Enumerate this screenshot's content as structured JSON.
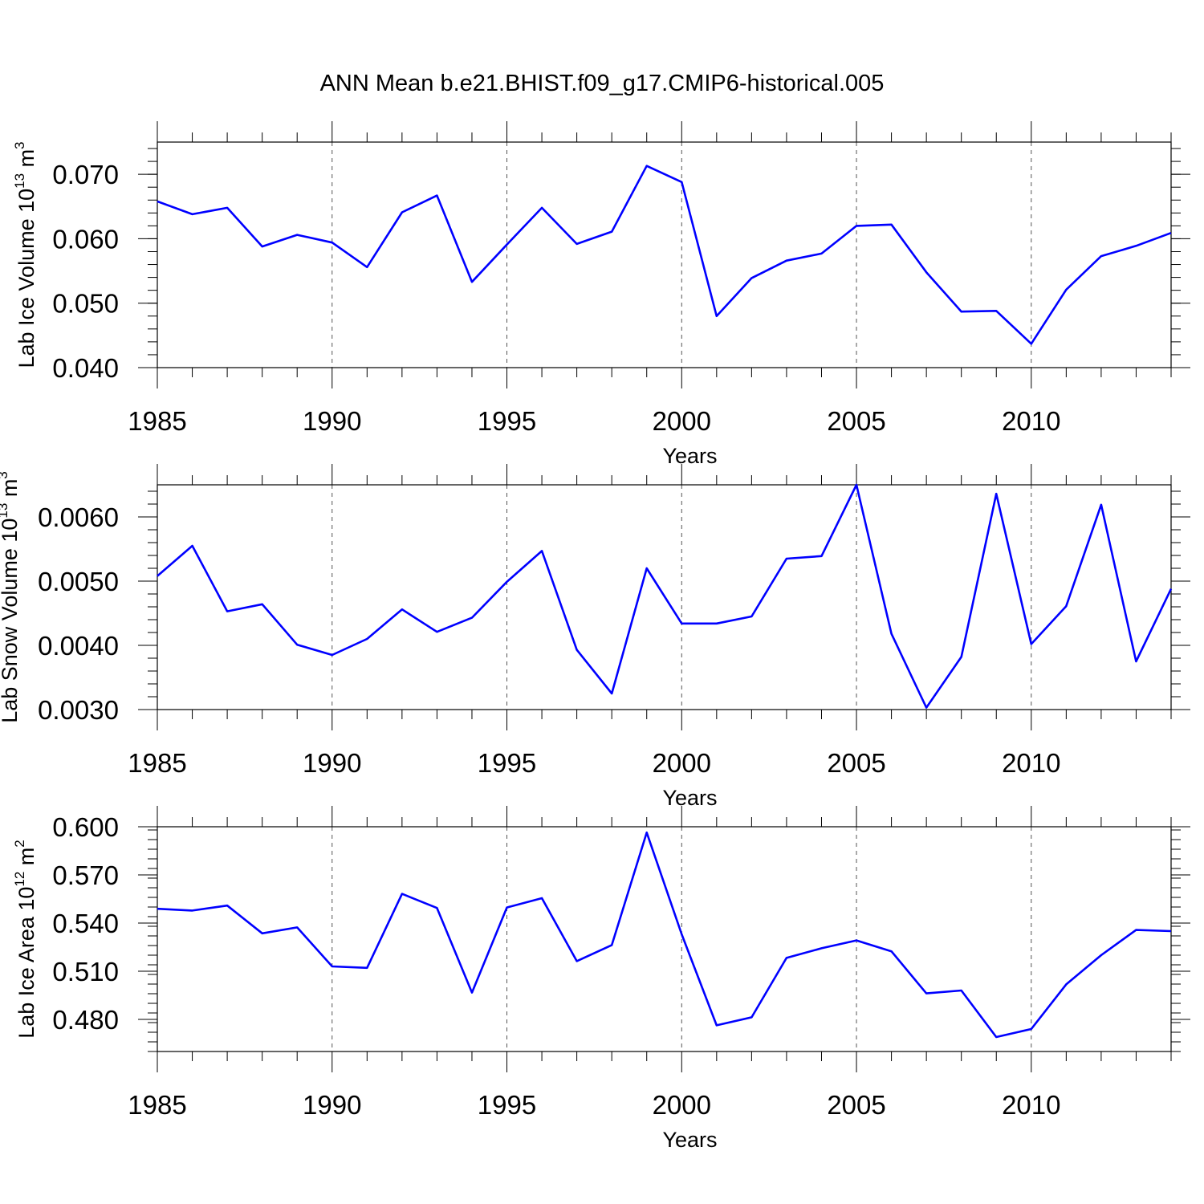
{
  "title": "ANN Mean b.e21.BHIST.f09_g17.CMIP6-historical.005",
  "colors": {
    "line": "#0000ff",
    "frame": "#000000",
    "grid": "#555555",
    "background": "#ffffff"
  },
  "chart_data": [
    {
      "type": "line",
      "title": "",
      "xlabel": "Years",
      "ylabel": {
        "prefix": "Lab Ice Volume 10",
        "exp": "13",
        "unit": " m",
        "unit_exp": "3"
      },
      "x_ticks": [
        "1985",
        "1990",
        "1995",
        "2000",
        "2005",
        "2010"
      ],
      "y_ticks": [
        "0.040",
        "0.050",
        "0.060",
        "0.070"
      ],
      "xlim": [
        1985,
        2014
      ],
      "ylim": [
        0.04,
        0.075
      ],
      "grid": "vertical dashed at major x ticks",
      "series": [
        {
          "x": [
            1985,
            1986,
            1987,
            1988,
            1989,
            1990,
            1991,
            1992,
            1993,
            1994,
            1995,
            1996,
            1997,
            1998,
            1999,
            2000,
            2001,
            2002,
            2003,
            2004,
            2005,
            2006,
            2007,
            2008,
            2009,
            2010,
            2011,
            2012,
            2013,
            2014
          ],
          "values": [
            0.0658,
            0.0638,
            0.0648,
            0.0588,
            0.0606,
            0.0594,
            0.0556,
            0.0641,
            0.0667,
            0.0533,
            0.0591,
            0.0648,
            0.0592,
            0.0611,
            0.0713,
            0.0688,
            0.048,
            0.0539,
            0.0566,
            0.0577,
            0.062,
            0.0622,
            0.0548,
            0.0487,
            0.0488,
            0.0437,
            0.0521,
            0.0573,
            0.0589,
            0.0609
          ]
        }
      ]
    },
    {
      "type": "line",
      "title": "",
      "xlabel": "Years",
      "ylabel": {
        "prefix": "Lab Snow Volume 10",
        "exp": "13",
        "unit": " m",
        "unit_exp": "3"
      },
      "x_ticks": [
        "1985",
        "1990",
        "1995",
        "2000",
        "2005",
        "2010"
      ],
      "y_ticks": [
        "0.0030",
        "0.0040",
        "0.0050",
        "0.0060"
      ],
      "xlim": [
        1985,
        2014
      ],
      "ylim": [
        0.003,
        0.0065
      ],
      "grid": "vertical dashed at major x ticks",
      "series": [
        {
          "x": [
            1985,
            1986,
            1987,
            1988,
            1989,
            1990,
            1991,
            1992,
            1993,
            1994,
            1995,
            1996,
            1997,
            1998,
            1999,
            2000,
            2001,
            2002,
            2003,
            2004,
            2005,
            2006,
            2007,
            2008,
            2009,
            2010,
            2011,
            2012,
            2013,
            2014
          ],
          "values": [
            0.00508,
            0.00555,
            0.00453,
            0.00464,
            0.00401,
            0.00385,
            0.0041,
            0.00456,
            0.00421,
            0.00443,
            0.00499,
            0.00547,
            0.00393,
            0.00325,
            0.0052,
            0.00434,
            0.00434,
            0.00445,
            0.00535,
            0.00539,
            0.0065,
            0.00418,
            0.00303,
            0.00382,
            0.00636,
            0.00402,
            0.00461,
            0.00619,
            0.00375,
            0.00488
          ]
        }
      ]
    },
    {
      "type": "line",
      "title": "",
      "xlabel": "Years",
      "ylabel": {
        "prefix": "Lab Ice Area 10",
        "exp": "12",
        "unit": " m",
        "unit_exp": "2"
      },
      "x_ticks": [
        "1985",
        "1990",
        "1995",
        "2000",
        "2005",
        "2010"
      ],
      "y_ticks": [
        "0.480",
        "0.510",
        "0.540",
        "0.570",
        "0.600"
      ],
      "xlim": [
        1985,
        2014
      ],
      "ylim": [
        0.46,
        0.6
      ],
      "grid": "vertical dashed at major x ticks",
      "series": [
        {
          "x": [
            1985,
            1986,
            1987,
            1988,
            1989,
            1990,
            1991,
            1992,
            1993,
            1994,
            1995,
            1996,
            1997,
            1998,
            1999,
            2000,
            2001,
            2002,
            2003,
            2004,
            2005,
            2006,
            2007,
            2008,
            2009,
            2010,
            2011,
            2012,
            2013,
            2014
          ],
          "values": [
            0.5489,
            0.5478,
            0.5509,
            0.5336,
            0.5373,
            0.513,
            0.5121,
            0.5582,
            0.5494,
            0.4967,
            0.5497,
            0.5555,
            0.5163,
            0.5263,
            0.5964,
            0.533,
            0.4763,
            0.4813,
            0.5183,
            0.5243,
            0.5292,
            0.5224,
            0.4962,
            0.498,
            0.469,
            0.474,
            0.5018,
            0.52,
            0.5357,
            0.535
          ]
        }
      ]
    }
  ]
}
